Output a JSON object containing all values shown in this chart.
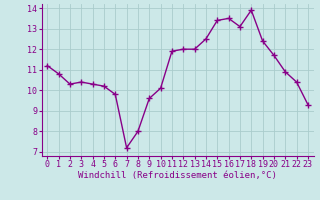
{
  "x": [
    0,
    1,
    2,
    3,
    4,
    5,
    6,
    7,
    8,
    9,
    10,
    11,
    12,
    13,
    14,
    15,
    16,
    17,
    18,
    19,
    20,
    21,
    22,
    23
  ],
  "y": [
    11.2,
    10.8,
    10.3,
    10.4,
    10.3,
    10.2,
    9.8,
    7.2,
    8.0,
    9.6,
    10.1,
    11.9,
    12.0,
    12.0,
    12.5,
    13.4,
    13.5,
    13.1,
    13.9,
    12.4,
    11.7,
    10.9,
    10.4,
    9.3
  ],
  "line_color": "#880088",
  "marker": "+",
  "marker_size": 4,
  "marker_lw": 1.0,
  "bg_color": "#cce8e8",
  "grid_color": "#aacccc",
  "xlabel": "Windchill (Refroidissement éolien,°C)",
  "xlabel_color": "#880088",
  "xlabel_fontsize": 6.5,
  "tick_color": "#880088",
  "tick_fontsize": 6,
  "ylim": [
    6.8,
    14.2
  ],
  "yticks": [
    7,
    8,
    9,
    10,
    11,
    12,
    13,
    14
  ],
  "xticks": [
    0,
    1,
    2,
    3,
    4,
    5,
    6,
    7,
    8,
    9,
    10,
    11,
    12,
    13,
    14,
    15,
    16,
    17,
    18,
    19,
    20,
    21,
    22,
    23
  ],
  "line_width": 1.0
}
